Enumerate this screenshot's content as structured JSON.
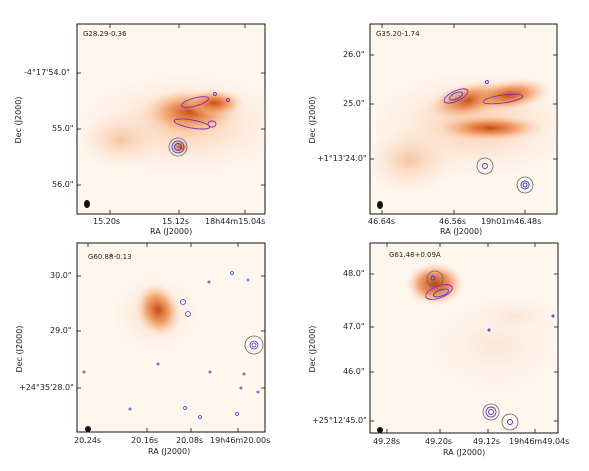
{
  "figure": {
    "panels": [
      {
        "name": "G28.29-0.36",
        "xlabel": "RA (J2000)",
        "ylabel": "Dec (J2000)",
        "xticks": [
          "15.20s",
          "15.12s",
          "18h44m15.04s"
        ],
        "yticks": [
          "-4°17'54.0\"",
          "55.0\"",
          "56.0\""
        ]
      },
      {
        "name": "G35.20-1.74",
        "xlabel": "RA (J2000)",
        "ylabel": "Dec (J2000)",
        "xticks": [
          "46.64s",
          "46.56s",
          "19h01m46.48s"
        ],
        "yticks": [
          "26.0\"",
          "25.0\"",
          "+1°13'24.0\""
        ]
      },
      {
        "name": "G60.88-0.13",
        "xlabel": "RA (J2000)",
        "ylabel": "Dec (J2000)",
        "xticks": [
          "20.24s",
          "20.16s",
          "20.08s",
          "19h46m20.00s"
        ],
        "yticks": [
          "30.0\"",
          "29.0\"",
          "+24°35'28.0\""
        ]
      },
      {
        "name": "G61.48+0.09A",
        "xlabel": "RA (J2000)",
        "ylabel": "Dec (J2000)",
        "xticks": [
          "49.28s",
          "49.20s",
          "49.12s",
          "19h46m49.04s"
        ],
        "yticks": [
          "48.0\"",
          "47.0\"",
          "46.0\"",
          "+25°12'45.0\""
        ]
      }
    ],
    "colors": {
      "background": "#fff6ee",
      "emission_dark": "#c4410a",
      "contour_purple": "#7b2cbf",
      "contour_blue": "#3140c9",
      "circle_grey": "#666666"
    }
  }
}
